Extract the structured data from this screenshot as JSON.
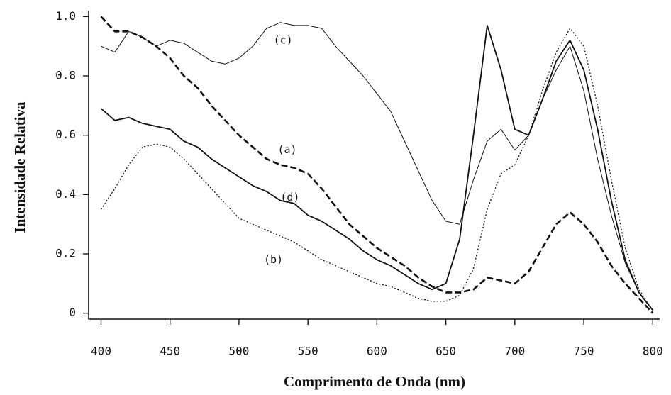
{
  "chart_data": {
    "type": "line",
    "xlabel": "Comprimento de Onda (nm)",
    "ylabel": "Intensidade Relativa",
    "x": [
      400,
      410,
      420,
      430,
      440,
      450,
      460,
      470,
      480,
      490,
      500,
      510,
      520,
      530,
      540,
      550,
      560,
      570,
      580,
      590,
      600,
      610,
      620,
      630,
      640,
      650,
      660,
      670,
      680,
      690,
      700,
      710,
      720,
      730,
      740,
      750,
      760,
      770,
      780,
      790,
      800
    ],
    "series": [
      {
        "name": "(a)",
        "color": "#111111",
        "style": "dashed",
        "linewidth": 2.6,
        "values": [
          1.0,
          0.95,
          0.95,
          0.93,
          0.9,
          0.86,
          0.8,
          0.76,
          0.7,
          0.65,
          0.6,
          0.56,
          0.52,
          0.5,
          0.49,
          0.47,
          0.42,
          0.36,
          0.3,
          0.26,
          0.22,
          0.19,
          0.16,
          0.12,
          0.09,
          0.07,
          0.07,
          0.08,
          0.12,
          0.11,
          0.1,
          0.14,
          0.22,
          0.3,
          0.34,
          0.3,
          0.24,
          0.16,
          0.1,
          0.05,
          0.0
        ]
      },
      {
        "name": "(b)",
        "color": "#111111",
        "style": "dotted",
        "linewidth": 1.3,
        "values": [
          0.35,
          0.42,
          0.5,
          0.56,
          0.57,
          0.56,
          0.52,
          0.47,
          0.42,
          0.37,
          0.32,
          0.3,
          0.28,
          0.26,
          0.24,
          0.21,
          0.18,
          0.16,
          0.14,
          0.12,
          0.1,
          0.09,
          0.07,
          0.05,
          0.04,
          0.04,
          0.06,
          0.15,
          0.35,
          0.47,
          0.5,
          0.6,
          0.75,
          0.88,
          0.96,
          0.9,
          0.7,
          0.45,
          0.22,
          0.08,
          0.01
        ]
      },
      {
        "name": "(c)",
        "color": "#111111",
        "style": "solid",
        "linewidth": 1.0,
        "values": [
          0.9,
          0.88,
          0.95,
          0.93,
          0.9,
          0.92,
          0.91,
          0.88,
          0.85,
          0.84,
          0.86,
          0.9,
          0.96,
          0.98,
          0.97,
          0.97,
          0.96,
          0.9,
          0.85,
          0.8,
          0.74,
          0.68,
          0.58,
          0.48,
          0.38,
          0.31,
          0.3,
          0.45,
          0.58,
          0.62,
          0.55,
          0.6,
          0.72,
          0.82,
          0.9,
          0.75,
          0.52,
          0.33,
          0.17,
          0.07,
          0.01
        ]
      },
      {
        "name": "(d)",
        "color": "#111111",
        "style": "solid",
        "linewidth": 1.8,
        "values": [
          0.69,
          0.65,
          0.66,
          0.64,
          0.63,
          0.62,
          0.58,
          0.56,
          0.52,
          0.49,
          0.46,
          0.43,
          0.41,
          0.38,
          0.37,
          0.33,
          0.31,
          0.28,
          0.25,
          0.21,
          0.18,
          0.16,
          0.13,
          0.1,
          0.08,
          0.1,
          0.25,
          0.6,
          0.97,
          0.82,
          0.62,
          0.6,
          0.72,
          0.85,
          0.92,
          0.82,
          0.62,
          0.38,
          0.18,
          0.07,
          0.01
        ]
      }
    ],
    "xlim": [
      391,
      805
    ],
    "xticks": [
      400,
      450,
      500,
      550,
      600,
      650,
      700,
      750,
      800
    ],
    "ylim": [
      -0.02,
      1.02
    ],
    "yticks": [
      0,
      0.2,
      0.4,
      0.6,
      0.8,
      {
        "value": 1,
        "label": "1.0"
      }
    ],
    "grid": false
  }
}
